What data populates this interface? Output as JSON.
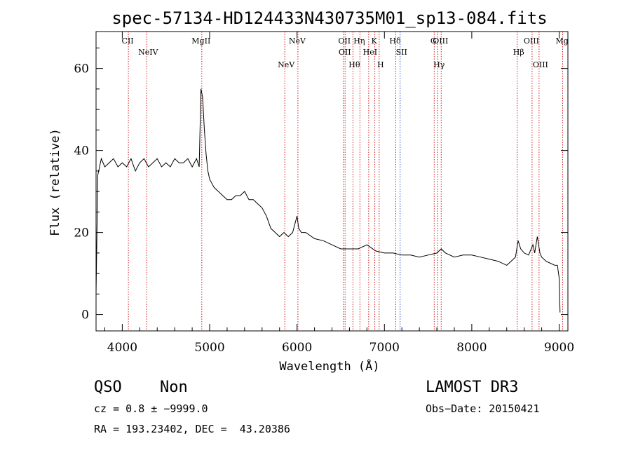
{
  "chart_data": {
    "type": "line",
    "title": "spec-57134-HD124433N430735M01_sp13-084.fits",
    "xlabel": "Wavelength (Å)",
    "ylabel": "Flux (relative)",
    "xlim": [
      3700,
      9100
    ],
    "ylim": [
      -4,
      69
    ],
    "x_ticks": [
      4000,
      5000,
      6000,
      7000,
      8000,
      9000
    ],
    "x_tick_labels": [
      "4000",
      "5000",
      "6000",
      "7000",
      "8000",
      "9000"
    ],
    "y_ticks": [
      0,
      20,
      40,
      60
    ],
    "y_tick_labels": [
      "0",
      "20",
      "40",
      "60"
    ],
    "series": [
      {
        "name": "spectrum",
        "color": "#000000",
        "x": [
          3700,
          3720,
          3760,
          3800,
          3850,
          3900,
          3950,
          4000,
          4050,
          4100,
          4150,
          4200,
          4250,
          4300,
          4350,
          4400,
          4450,
          4500,
          4550,
          4600,
          4650,
          4700,
          4750,
          4800,
          4850,
          4880,
          4900,
          4920,
          4940,
          4960,
          4980,
          5000,
          5050,
          5100,
          5150,
          5200,
          5250,
          5300,
          5350,
          5400,
          5450,
          5500,
          5550,
          5600,
          5650,
          5700,
          5750,
          5800,
          5850,
          5900,
          5950,
          6000,
          6020,
          6050,
          6100,
          6200,
          6300,
          6400,
          6500,
          6600,
          6700,
          6800,
          6900,
          7000,
          7100,
          7200,
          7300,
          7400,
          7500,
          7600,
          7650,
          7700,
          7800,
          7900,
          8000,
          8100,
          8200,
          8300,
          8400,
          8450,
          8500,
          8530,
          8560,
          8600,
          8650,
          8700,
          8720,
          8750,
          8780,
          8800,
          8850,
          8900,
          8950,
          8980,
          9000,
          9010
        ],
        "values": [
          5,
          34,
          38,
          36,
          37,
          38,
          36,
          37,
          36,
          38,
          35,
          37,
          38,
          36,
          37,
          38,
          36,
          37,
          36,
          38,
          37,
          37,
          38,
          36,
          38,
          36,
          55,
          53,
          45,
          39,
          35,
          33,
          31,
          30,
          29,
          28,
          28,
          29,
          29,
          30,
          28,
          28,
          27,
          26,
          24,
          21,
          20,
          19,
          20,
          19,
          20,
          24,
          21,
          20,
          20,
          18.5,
          18,
          17,
          16,
          16,
          16,
          17,
          15.5,
          15,
          15,
          14.5,
          14.5,
          14,
          14.5,
          15,
          16,
          15,
          14,
          14.5,
          14.5,
          14,
          13.5,
          13,
          12,
          13,
          14,
          18,
          16,
          15,
          14.5,
          17,
          15,
          19,
          15,
          14,
          13,
          12.5,
          12,
          12,
          9,
          0.5
        ]
      }
    ],
    "lines": [
      {
        "label": "CII",
        "x": 4070,
        "style": "red"
      },
      {
        "label": "NeIV",
        "x": 4280,
        "style": "red"
      },
      {
        "label": "MgII",
        "x": 4910,
        "style": "red"
      },
      {
        "label": "NeV",
        "x": 5860,
        "style": "red"
      },
      {
        "label": "NeV",
        "x": 6010,
        "style": "red"
      },
      {
        "label": "OII",
        "x": 6530,
        "style": "red"
      },
      {
        "label": "OII",
        "x": 6550,
        "style": "red"
      },
      {
        "label": "Hθ",
        "x": 6640,
        "style": "red"
      },
      {
        "label": "Hη",
        "x": 6720,
        "style": "red"
      },
      {
        "label": "HeI",
        "x": 6820,
        "style": "red"
      },
      {
        "label": "K",
        "x": 6890,
        "style": "red"
      },
      {
        "label": "H",
        "x": 6940,
        "style": "red"
      },
      {
        "label": "Hδ",
        "x": 7130,
        "style": "blue"
      },
      {
        "label": "SII",
        "x": 7180,
        "style": "blue"
      },
      {
        "label": "G",
        "x": 7570,
        "style": "red"
      },
      {
        "label": "Hγ",
        "x": 7610,
        "style": "red"
      },
      {
        "label": "OIII",
        "x": 7650,
        "style": "red"
      },
      {
        "label": "Hβ",
        "x": 8520,
        "style": "red"
      },
      {
        "label": "OIII",
        "x": 8690,
        "style": "red"
      },
      {
        "label": "OIII",
        "x": 8770,
        "style": "red"
      },
      {
        "label": "Mg",
        "x": 9040,
        "style": "red"
      }
    ]
  },
  "info": {
    "class": "QSO",
    "subclass": "Non",
    "survey": "LAMOST DR3",
    "cz": "cz = 0.8 ± −9999.0",
    "obs_date": "Obs−Date: 20150421",
    "coords": "RA = 193.23402, DEC =  43.20386"
  },
  "colors": {
    "line_red": "#cc2222",
    "line_blue": "#3355cc",
    "axis": "#000000"
  }
}
